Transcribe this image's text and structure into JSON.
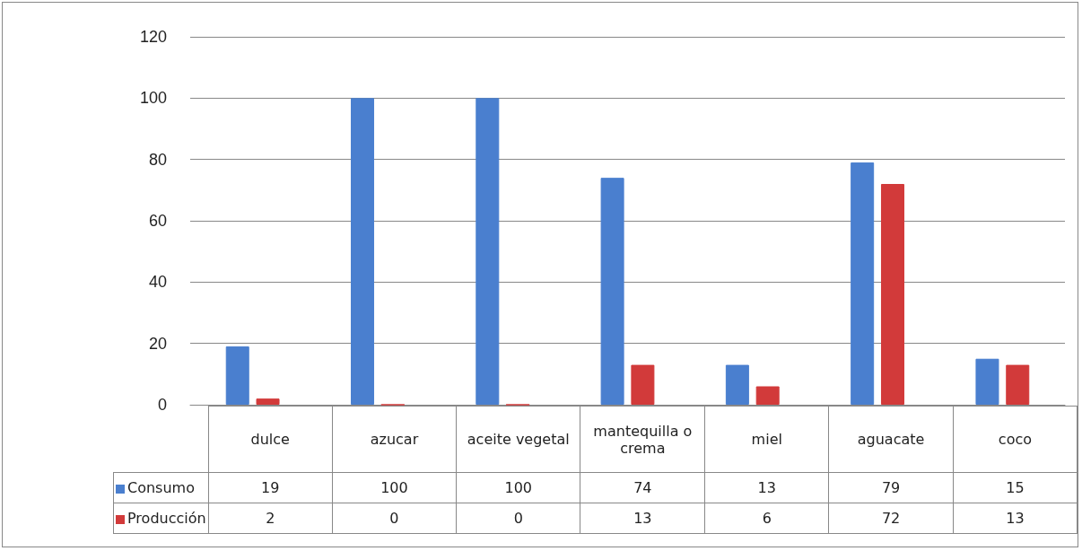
{
  "chart_data": {
    "type": "bar",
    "categories": [
      "dulce",
      "azucar",
      "aceite vegetal",
      "mantequilla o crema",
      "miel",
      "aguacate",
      "coco"
    ],
    "series": [
      {
        "name": "Consumo",
        "color": "#4a7fcf",
        "values": [
          19,
          100,
          100,
          74,
          13,
          79,
          15
        ]
      },
      {
        "name": "Producción",
        "color": "#d23a3a",
        "values": [
          2,
          0,
          0,
          13,
          6,
          72,
          13
        ]
      }
    ],
    "ylim": [
      0,
      120
    ],
    "yticks": [
      0,
      20,
      40,
      60,
      80,
      100,
      120
    ],
    "grid": "y",
    "data_labels": true,
    "legend": "bottom"
  }
}
